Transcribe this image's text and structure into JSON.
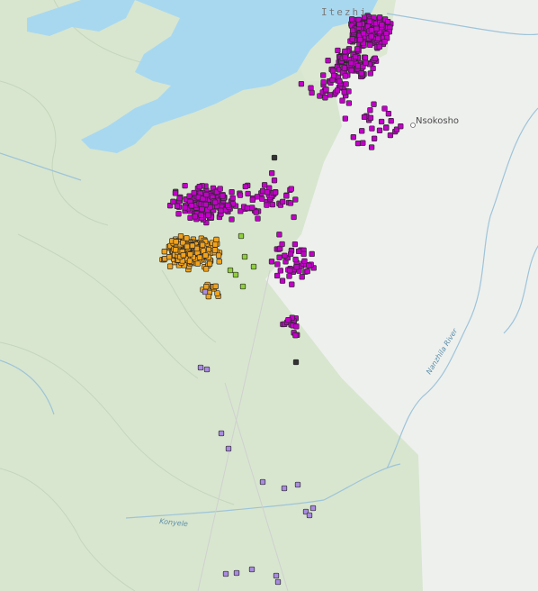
{
  "map": {
    "labels": {
      "town_top": "Itezhi",
      "place_nsokosho": "Nsokosho",
      "river_nanzhila": "Nanzhila River",
      "river_konyele": "Konyele"
    },
    "colors": {
      "water": "#a8d8f0",
      "park_green": "#d8e6cf",
      "outside_land": "#f2f3f1",
      "river_line": "#9ec4d8",
      "contour": "#c4d6bd",
      "purple_points": "#c200c8",
      "orange_points": "#f2a21a",
      "lavender_points": "#a98be0",
      "green_points": "#8fcf3a",
      "dark_points": "#333333"
    },
    "legend_points": [
      "purple",
      "orange",
      "lavender",
      "green"
    ]
  }
}
